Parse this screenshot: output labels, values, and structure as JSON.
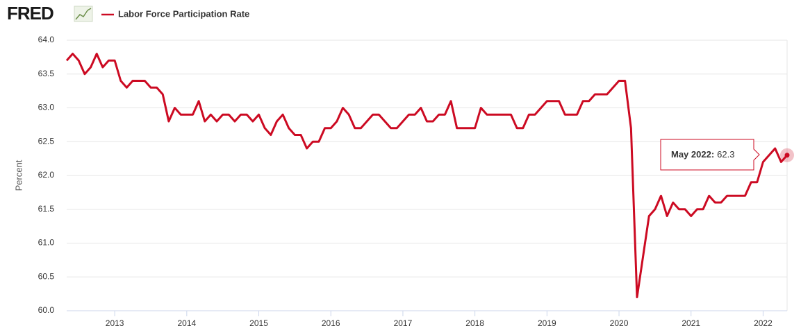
{
  "logo": "FRED",
  "chart_data": {
    "type": "line",
    "y_label": "Percent",
    "x": [
      "2012-05",
      "2012-06",
      "2012-07",
      "2012-08",
      "2012-09",
      "2012-10",
      "2012-11",
      "2012-12",
      "2013-01",
      "2013-02",
      "2013-03",
      "2013-04",
      "2013-05",
      "2013-06",
      "2013-07",
      "2013-08",
      "2013-09",
      "2013-10",
      "2013-11",
      "2013-12",
      "2014-01",
      "2014-02",
      "2014-03",
      "2014-04",
      "2014-05",
      "2014-06",
      "2014-07",
      "2014-08",
      "2014-09",
      "2014-10",
      "2014-11",
      "2014-12",
      "2015-01",
      "2015-02",
      "2015-03",
      "2015-04",
      "2015-05",
      "2015-06",
      "2015-07",
      "2015-08",
      "2015-09",
      "2015-10",
      "2015-11",
      "2015-12",
      "2016-01",
      "2016-02",
      "2016-03",
      "2016-04",
      "2016-05",
      "2016-06",
      "2016-07",
      "2016-08",
      "2016-09",
      "2016-10",
      "2016-11",
      "2016-12",
      "2017-01",
      "2017-02",
      "2017-03",
      "2017-04",
      "2017-05",
      "2017-06",
      "2017-07",
      "2017-08",
      "2017-09",
      "2017-10",
      "2017-11",
      "2017-12",
      "2018-01",
      "2018-02",
      "2018-03",
      "2018-04",
      "2018-05",
      "2018-06",
      "2018-07",
      "2018-08",
      "2018-09",
      "2018-10",
      "2018-11",
      "2018-12",
      "2019-01",
      "2019-02",
      "2019-03",
      "2019-04",
      "2019-05",
      "2019-06",
      "2019-07",
      "2019-08",
      "2019-09",
      "2019-10",
      "2019-11",
      "2019-12",
      "2020-01",
      "2020-02",
      "2020-03",
      "2020-04",
      "2020-05",
      "2020-06",
      "2020-07",
      "2020-08",
      "2020-09",
      "2020-10",
      "2020-11",
      "2020-12",
      "2021-01",
      "2021-02",
      "2021-03",
      "2021-04",
      "2021-05",
      "2021-06",
      "2021-07",
      "2021-08",
      "2021-09",
      "2021-10",
      "2021-11",
      "2021-12",
      "2022-01",
      "2022-02",
      "2022-03",
      "2022-04",
      "2022-05"
    ],
    "series": [
      {
        "name": "Labor Force Participation Rate",
        "color": "#cc0a22",
        "values": [
          63.7,
          63.8,
          63.7,
          63.5,
          63.6,
          63.8,
          63.6,
          63.7,
          63.7,
          63.4,
          63.3,
          63.4,
          63.4,
          63.4,
          63.3,
          63.3,
          63.2,
          62.8,
          63.0,
          62.9,
          62.9,
          62.9,
          63.1,
          62.8,
          62.9,
          62.8,
          62.9,
          62.9,
          62.8,
          62.9,
          62.9,
          62.8,
          62.9,
          62.7,
          62.6,
          62.8,
          62.9,
          62.7,
          62.6,
          62.6,
          62.4,
          62.5,
          62.5,
          62.7,
          62.7,
          62.8,
          63.0,
          62.9,
          62.7,
          62.7,
          62.8,
          62.9,
          62.9,
          62.8,
          62.7,
          62.7,
          62.8,
          62.9,
          62.9,
          63.0,
          62.8,
          62.8,
          62.9,
          62.9,
          63.1,
          62.7,
          62.7,
          62.7,
          62.7,
          63.0,
          62.9,
          62.9,
          62.9,
          62.9,
          62.9,
          62.7,
          62.7,
          62.9,
          62.9,
          63.0,
          63.1,
          63.1,
          63.1,
          62.9,
          62.9,
          62.9,
          63.1,
          63.1,
          63.2,
          63.2,
          63.2,
          63.3,
          63.4,
          63.4,
          62.7,
          60.2,
          60.8,
          61.4,
          61.5,
          61.7,
          61.4,
          61.6,
          61.5,
          61.5,
          61.4,
          61.5,
          61.5,
          61.7,
          61.6,
          61.6,
          61.7,
          61.7,
          61.7,
          61.7,
          61.9,
          61.9,
          62.2,
          62.3,
          62.4,
          62.2,
          62.3
        ]
      }
    ],
    "ylim": [
      60,
      64
    ],
    "yticks": [
      {
        "value": 60,
        "label": "60.0"
      },
      {
        "value": 60.5,
        "label": "60.5"
      },
      {
        "value": 61,
        "label": "61.0"
      },
      {
        "value": 61.5,
        "label": "61.5"
      },
      {
        "value": 62,
        "label": "62.0"
      },
      {
        "value": 62.5,
        "label": "62.5"
      },
      {
        "value": 63,
        "label": "63.0"
      },
      {
        "value": 63.5,
        "label": "63.5"
      },
      {
        "value": 64,
        "label": "64.0"
      }
    ],
    "xticks": [
      {
        "value": "2013-01",
        "label": "2013"
      },
      {
        "value": "2014-01",
        "label": "2014"
      },
      {
        "value": "2015-01",
        "label": "2015"
      },
      {
        "value": "2016-01",
        "label": "2016"
      },
      {
        "value": "2017-01",
        "label": "2017"
      },
      {
        "value": "2018-01",
        "label": "2018"
      },
      {
        "value": "2019-01",
        "label": "2019"
      },
      {
        "value": "2020-01",
        "label": "2020"
      },
      {
        "value": "2021-01",
        "label": "2021"
      },
      {
        "value": "2022-01",
        "label": "2022"
      }
    ],
    "grid": true,
    "tooltip": {
      "label": "May 2022:",
      "point": 120
    }
  }
}
